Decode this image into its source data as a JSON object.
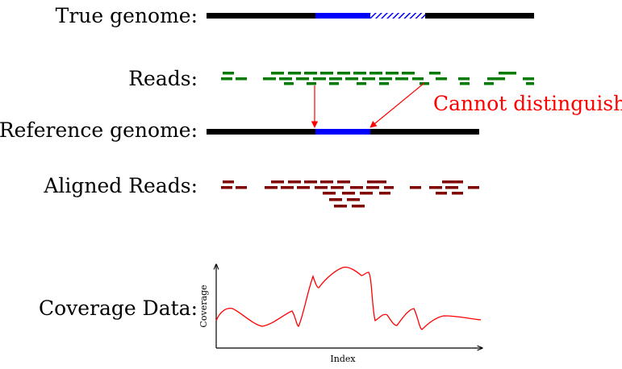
{
  "labels": {
    "true_genome": "True genome:",
    "reads": "Reads:",
    "reference_genome": "Reference genome:",
    "aligned_reads": "Aligned Reads:",
    "coverage_data": "Coverage Data:"
  },
  "annotation": "Cannot distinguish",
  "plot": {
    "xlabel": "Index",
    "ylabel": "Coverage"
  },
  "colors": {
    "genome": "#000000",
    "repeat": "#0000ff",
    "reads": "#007a00",
    "aligned_reads": "#800000",
    "annotation": "#ff0000",
    "curve": "#ff0000"
  }
}
